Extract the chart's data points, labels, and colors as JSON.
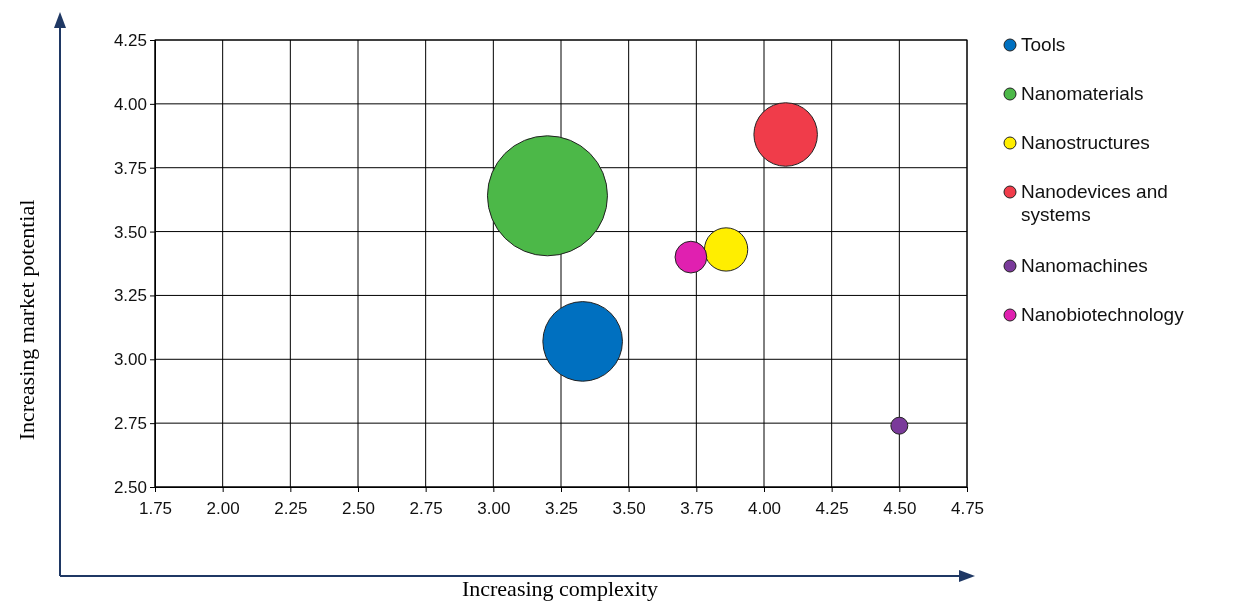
{
  "chart_data": {
    "type": "bubble",
    "xlabel": "Increasing complexity",
    "ylabel": "Increasing market potential",
    "xlim": [
      1.75,
      4.75
    ],
    "ylim": [
      2.5,
      4.25
    ],
    "xticks": [
      {
        "value": 1.75,
        "label": "1.75"
      },
      {
        "value": 2,
        "label": "2.00"
      },
      {
        "value": 2.25,
        "label": "2.25"
      },
      {
        "value": 2.5,
        "label": "2.50"
      },
      {
        "value": 2.75,
        "label": "2.75"
      },
      {
        "value": 3,
        "label": "3.00"
      },
      {
        "value": 3.25,
        "label": "3.25"
      },
      {
        "value": 3.5,
        "label": "3.50"
      },
      {
        "value": 3.75,
        "label": "3.75"
      },
      {
        "value": 4,
        "label": "4.00"
      },
      {
        "value": 4.25,
        "label": "4.25"
      },
      {
        "value": 4.5,
        "label": "4.50"
      },
      {
        "value": 4.75,
        "label": "4.75"
      }
    ],
    "yticks": [
      {
        "value": 2.5,
        "label": "2.50"
      },
      {
        "value": 2.75,
        "label": "2.75"
      },
      {
        "value": 3,
        "label": "3.00"
      },
      {
        "value": 3.25,
        "label": "3.25"
      },
      {
        "value": 3.5,
        "label": "3.50"
      },
      {
        "value": 3.75,
        "label": "3.75"
      },
      {
        "value": 4,
        "label": "4.00"
      },
      {
        "value": 4.25,
        "label": "4.25"
      }
    ],
    "grid": true,
    "legend": "right",
    "marker": "circle",
    "series": [
      {
        "name": "Tools",
        "color": "#0070c0",
        "x": [
          3.33
        ],
        "values": [
          3.07
        ],
        "sizes": [
          0.44
        ]
      },
      {
        "name": "Nanomaterials",
        "color": "#4cb848",
        "x": [
          3.2
        ],
        "values": [
          3.64
        ],
        "sizes": [
          1
        ]
      },
      {
        "name": "Nanostructures",
        "color": "#ffee00",
        "x": [
          3.86
        ],
        "values": [
          3.43
        ],
        "sizes": [
          0.13
        ]
      },
      {
        "name": "Nanodevices and systems",
        "color": "#f03c4a",
        "x": [
          4.08
        ],
        "values": [
          3.88
        ],
        "sizes": [
          0.28
        ]
      },
      {
        "name": "Nanomachines",
        "color": "#7a3a9a",
        "x": [
          4.5
        ],
        "values": [
          2.74
        ],
        "sizes": [
          0.02
        ]
      },
      {
        "name": "Nanobiotechnology",
        "color": "#e020b0",
        "x": [
          3.73
        ],
        "values": [
          3.4
        ],
        "sizes": [
          0.07
        ]
      }
    ]
  }
}
